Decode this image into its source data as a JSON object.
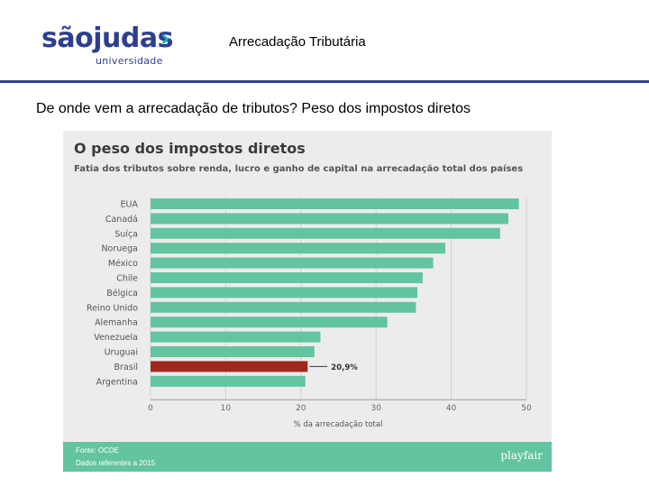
{
  "header": {
    "logo_text": "sãojudas",
    "logo_sub": "universidade",
    "title": "Arrecadação Tributária"
  },
  "slide": {
    "subtitle": "De onde vem a arrecadação de tributos? Peso dos impostos diretos"
  },
  "colors": {
    "brand": "#2e3f8f",
    "accent": "#18b6b4",
    "bar": "#63c4a0",
    "highlight": "#a0281e"
  },
  "chart_data": {
    "type": "bar",
    "orientation": "horizontal",
    "title": "O peso dos impostos diretos",
    "subtitle": "Fatia dos tributos sobre renda, lucro e ganho de capital na arrecadação total dos países",
    "categories": [
      "EUA",
      "Canadá",
      "Suíça",
      "Noruega",
      "México",
      "Chile",
      "Bélgica",
      "Reino Unido",
      "Alemanha",
      "Venezuela",
      "Uruguai",
      "Brasil",
      "Argentina"
    ],
    "values": [
      49.0,
      47.6,
      46.5,
      39.2,
      37.6,
      36.2,
      35.5,
      35.3,
      31.5,
      22.6,
      21.8,
      20.9,
      20.6
    ],
    "highlight": "Brasil",
    "annotations": [
      {
        "category": "Brasil",
        "text": "20,9%"
      }
    ],
    "xlabel": "% da arrecadação total",
    "xlim": [
      0,
      50
    ],
    "xticks": [
      0,
      10,
      20,
      30,
      40,
      50
    ],
    "grid": true,
    "source": "Fonte: OCDE",
    "note": "Dados referentes a 2015",
    "brand": "playfair"
  }
}
